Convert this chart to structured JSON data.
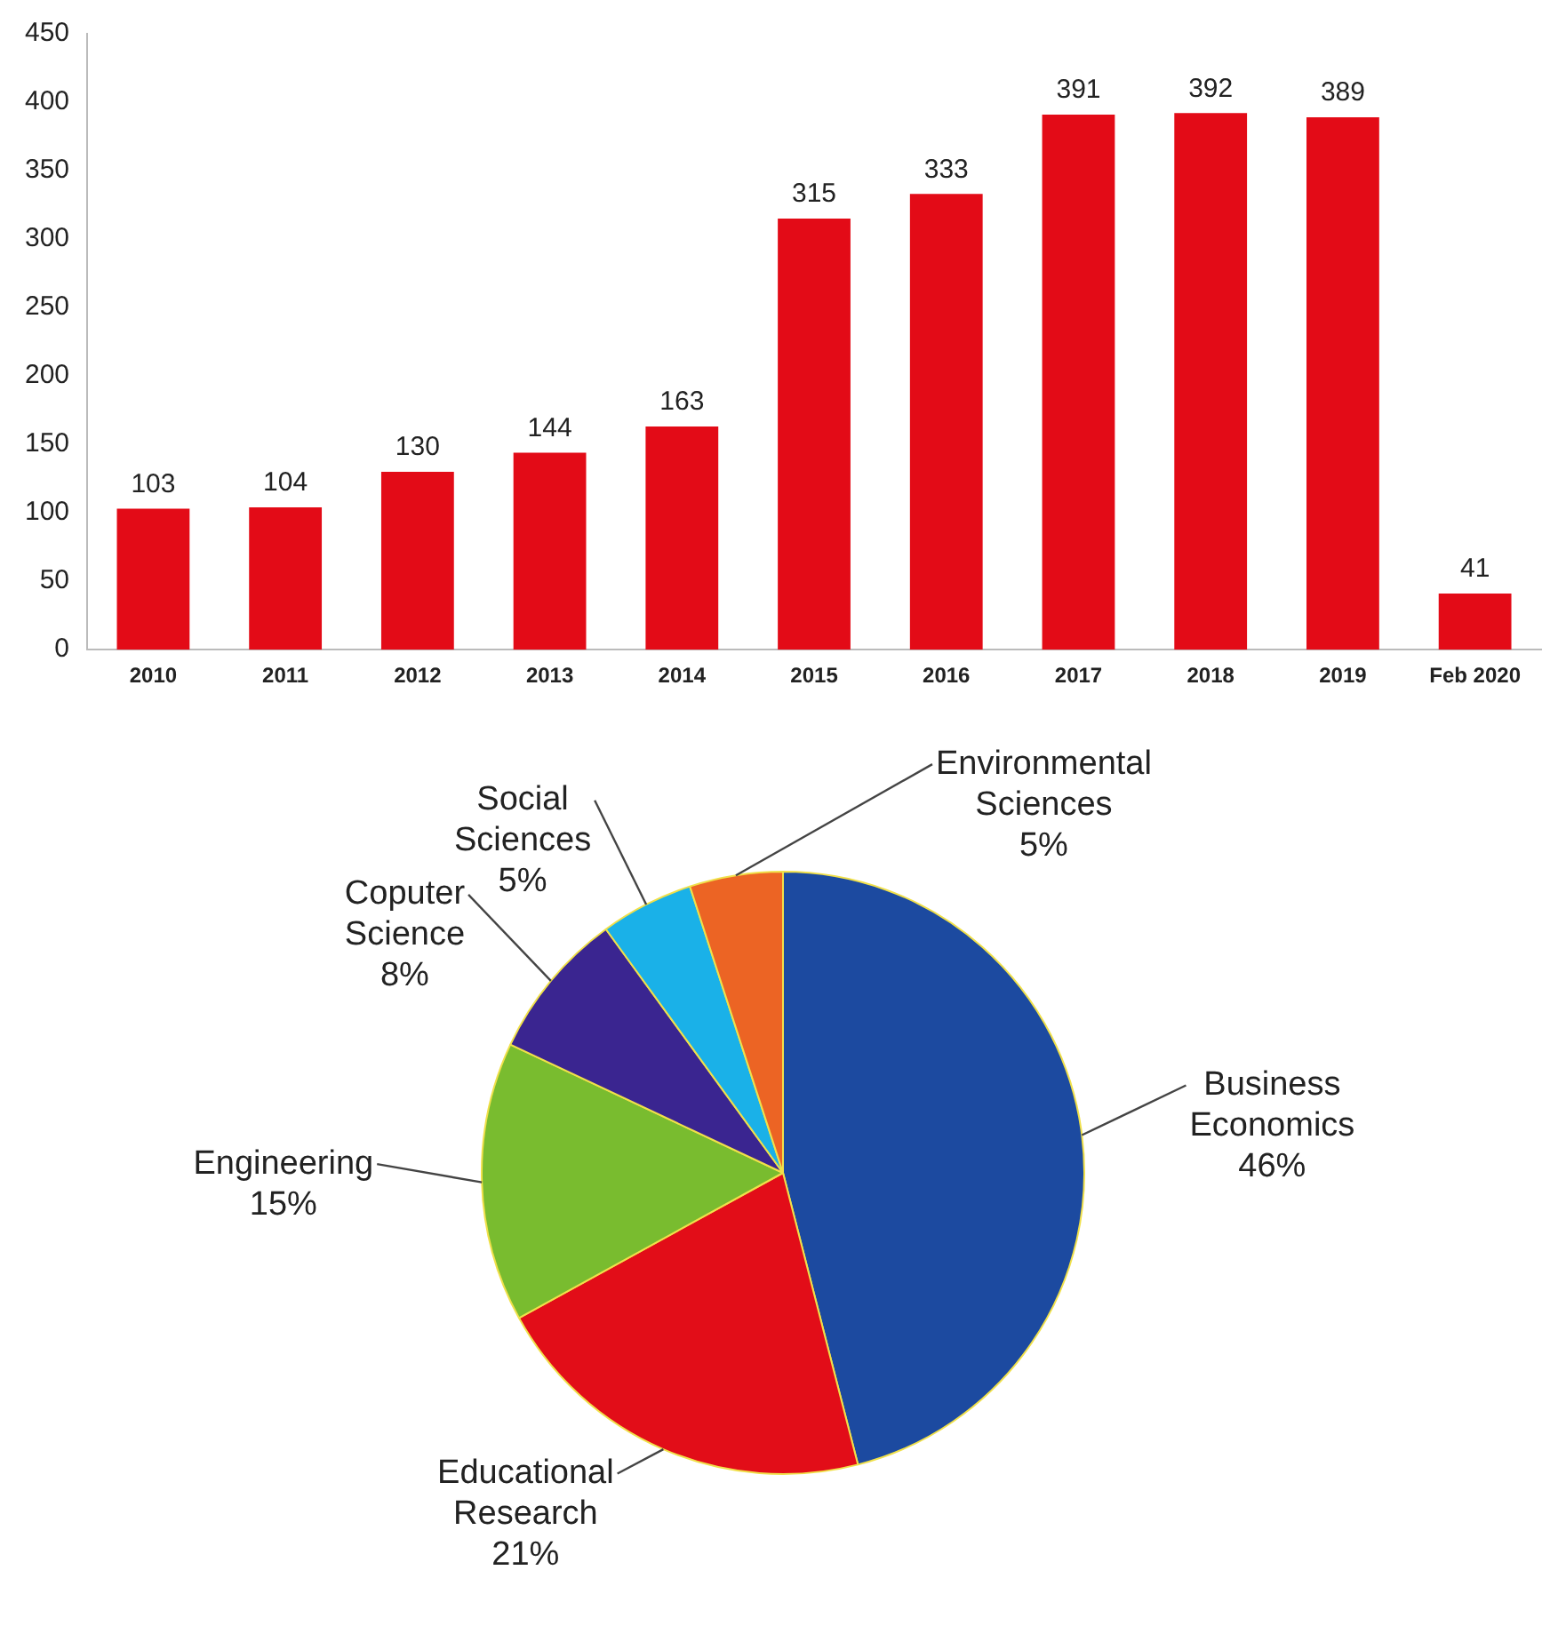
{
  "chart_data": [
    {
      "type": "bar",
      "categories": [
        "2010",
        "2011",
        "2012",
        "2013",
        "2014",
        "2015",
        "2016",
        "2017",
        "2018",
        "2019",
        "Feb 2020"
      ],
      "values": [
        103,
        104,
        130,
        144,
        163,
        315,
        333,
        391,
        392,
        389,
        41
      ],
      "color": "#e30b17",
      "ylim": [
        0,
        450
      ],
      "yticks": [
        0,
        50,
        100,
        150,
        200,
        250,
        300,
        350,
        400,
        450
      ],
      "grid": false,
      "legend": false,
      "data_labels": true
    },
    {
      "type": "pie",
      "categories": [
        "Business Economics",
        "Educational Research",
        "Engineering",
        "Coputer Science",
        "Social Sciences",
        "Environmental Sciences"
      ],
      "values": [
        46,
        21,
        15,
        8,
        5,
        5
      ],
      "value_labels": [
        "46%",
        "21%",
        "15%",
        "8%",
        "5%",
        "5%"
      ],
      "colors": [
        "#1c4aa0",
        "#e20d18",
        "#79bc2f",
        "#3a2590",
        "#1ab1e8",
        "#ec6424"
      ],
      "legend": false
    }
  ]
}
